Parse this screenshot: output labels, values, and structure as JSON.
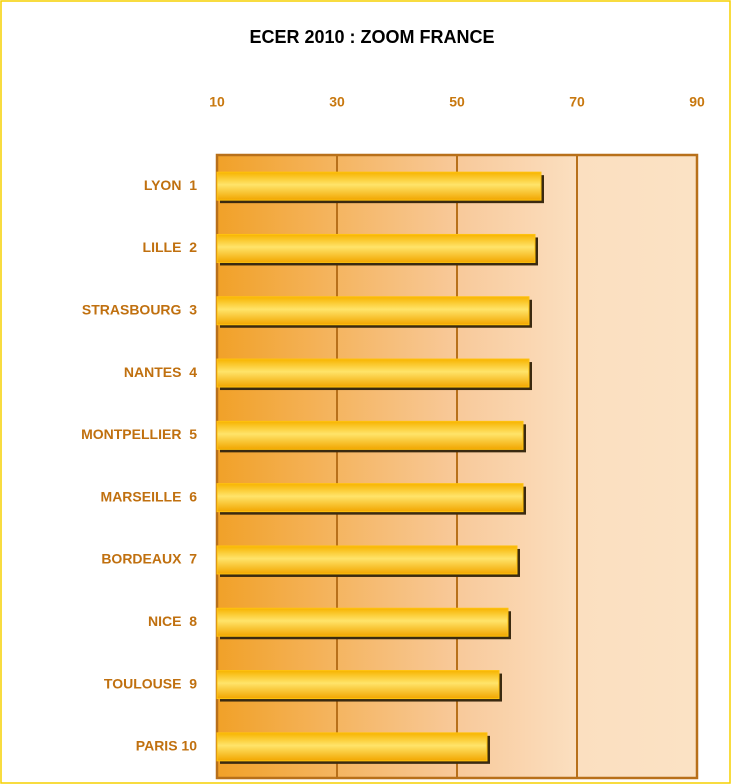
{
  "chart_data": {
    "type": "barh",
    "title": "ECER 2010 : ZOOM FRANCE",
    "categories": [
      "LYON  1",
      "LILLE  2",
      "STRASBOURG  3",
      "NANTES  4",
      "MONTPELLIER  5",
      "MARSEILLE  6",
      "BORDEAUX  7",
      "NICE  8",
      "TOULOUSE  9",
      "PARIS 10"
    ],
    "values": [
      64,
      63,
      62,
      62,
      61,
      61,
      60,
      58.5,
      57,
      55
    ],
    "color": "#ffc20e",
    "xlim": [
      10,
      90
    ],
    "xticks": [
      10,
      30,
      50,
      70,
      90
    ],
    "grid": true
  }
}
